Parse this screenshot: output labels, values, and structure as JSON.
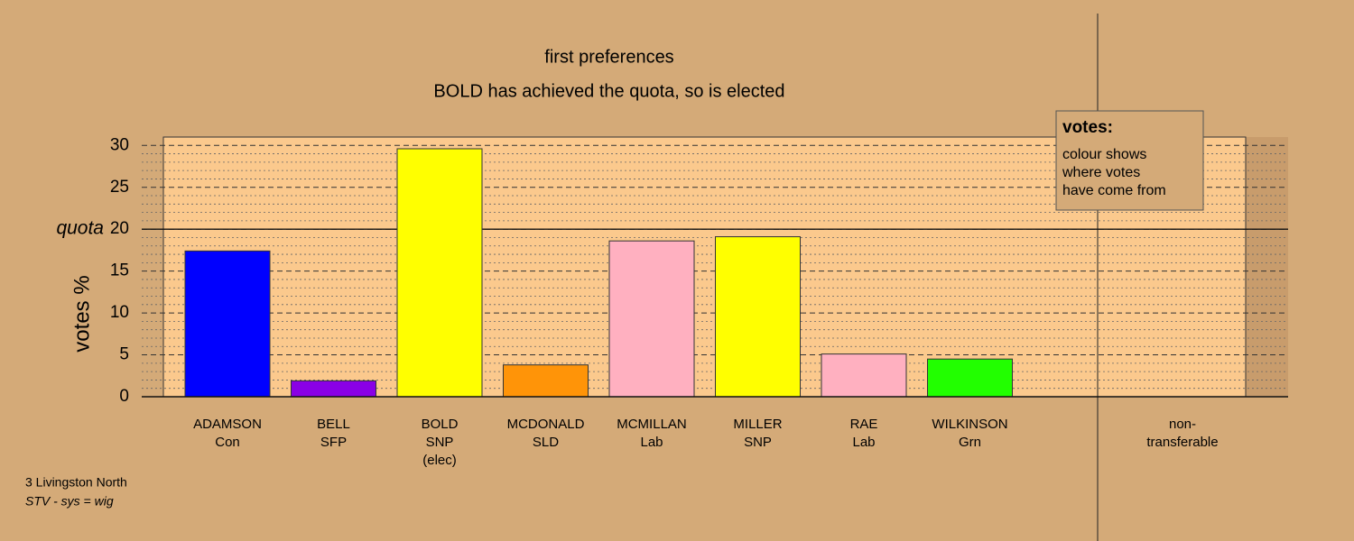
{
  "chart_data": {
    "type": "bar",
    "title": "first preferences",
    "subtitle": "BOLD has achieved the quota, so is elected",
    "y_label": "votes %",
    "categories": [
      [
        "ADAMSON",
        "Con"
      ],
      [
        "BELL",
        "SFP"
      ],
      [
        "BOLD",
        "SNP",
        "(elec)"
      ],
      [
        "MCDONALD",
        "SLD"
      ],
      [
        "MCMILLAN",
        "Lab"
      ],
      [
        "MILLER",
        "SNP"
      ],
      [
        "RAE",
        "Lab"
      ],
      [
        "WILKINSON",
        "Grn"
      ],
      [
        "non-",
        "transferable"
      ]
    ],
    "values": [
      17.4,
      1.9,
      29.6,
      3.8,
      18.6,
      19.1,
      5.1,
      4.5,
      0
    ],
    "colors": [
      "#0000ff",
      "#8a00e6",
      "#ffff00",
      "#ff9408",
      "#ffb0c0",
      "#ffff00",
      "#ffb0c0",
      "#22ff00",
      "#ffb0c0"
    ],
    "ylim": [
      0,
      31
    ],
    "yticks": [
      0,
      5,
      10,
      15,
      20,
      25,
      30
    ],
    "minor_yticks": [
      1,
      2,
      3,
      4,
      6,
      7,
      8,
      9,
      11,
      12,
      13,
      14,
      16,
      17,
      18,
      19,
      21,
      22,
      23,
      24,
      26,
      27,
      28,
      29
    ],
    "quota": {
      "value": 20,
      "label": "quota"
    },
    "legend": {
      "title": "votes:",
      "lines": [
        "colour shows",
        "where votes",
        "have come from"
      ]
    },
    "footnotes": [
      "3 Livingston North",
      "STV - sys = wig"
    ]
  }
}
